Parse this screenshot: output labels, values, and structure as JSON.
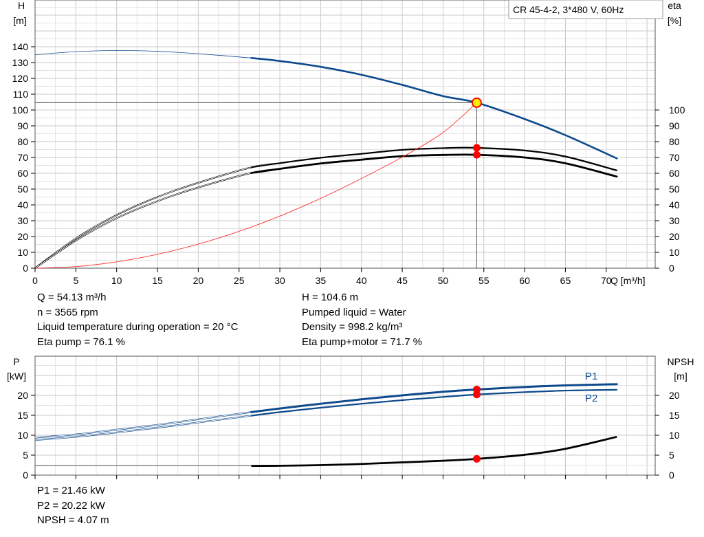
{
  "title_box": "CR 45-4-2, 3*480 V, 60Hz",
  "top_chart": {
    "left_axis_label": [
      "H",
      "[m]"
    ],
    "right_axis_label": [
      "eta",
      "[%]"
    ],
    "x_axis_label": "Q [m³/h]"
  },
  "bottom_chart": {
    "left_axis_label": [
      "P",
      "[kW]"
    ],
    "right_axis_label": [
      "NPSH",
      "[m]"
    ],
    "p1_label": "P1",
    "p2_label": "P2"
  },
  "info_top_left": [
    "Q = 54.13 m³/h",
    "n = 3565 rpm",
    "Liquid temperature during operation = 20 °C",
    "Eta pump = 76.1 %"
  ],
  "info_top_right": [
    "H = 104.6 m",
    "Pumped liquid = Water",
    "Density = 998.2 kg/m³",
    "Eta pump+motor = 71.7 %"
  ],
  "info_bottom": [
    "P1 = 21.46 kW",
    "P2 = 20.22 kW",
    "NPSH = 4.07 m"
  ],
  "colors": {
    "head_curve": "#0d4a8c",
    "eta_curves": "#000000",
    "system_curve": "#ff3030",
    "operating_point": "#ff0000",
    "duty_marker": "#ffee00",
    "grid": "#c8c8c8"
  },
  "chart_data": [
    {
      "type": "line",
      "title": "CR 45-4-2, 3*480 V, 60Hz",
      "xlabel": "Q [m³/h]",
      "ylabel": "H [m]",
      "y2label": "eta [%]",
      "xlim": [
        0,
        76
      ],
      "ylim": [
        0,
        150
      ],
      "y2lim": [
        0,
        100
      ],
      "x_ticks": [
        0,
        5,
        10,
        15,
        20,
        25,
        30,
        35,
        40,
        45,
        50,
        55,
        60,
        65,
        70
      ],
      "y_ticks": [
        0,
        10,
        20,
        30,
        40,
        50,
        60,
        70,
        80,
        90,
        100,
        110,
        120,
        130,
        140
      ],
      "y2_ticks": [
        0,
        10,
        20,
        30,
        40,
        50,
        60,
        70,
        80,
        90,
        100
      ],
      "grid": true,
      "series": [
        {
          "id": "head",
          "axis": "left",
          "x": [
            0,
            5,
            10,
            15,
            20,
            26.5,
            30,
            35,
            40,
            45,
            50,
            54.13,
            60,
            65,
            71.3
          ],
          "y": [
            135,
            136.9,
            137.6,
            137.1,
            135.6,
            132.9,
            131.0,
            127.3,
            122.3,
            115.9,
            108.8,
            104.6,
            94.3,
            84.1,
            69.4
          ],
          "style": "head",
          "thick_from": 26.5
        },
        {
          "id": "eta_pump",
          "axis": "right",
          "x": [
            0,
            5,
            10,
            15,
            20,
            26.5,
            30,
            35,
            40,
            45,
            50,
            54.13,
            60,
            65,
            71.3
          ],
          "y": [
            0,
            18.8,
            33.6,
            45.0,
            54.0,
            63.7,
            66.4,
            69.8,
            72.3,
            74.8,
            75.9,
            76.1,
            74.4,
            70.6,
            61.8
          ],
          "style": "eta",
          "thick_from": 26.5
        },
        {
          "id": "eta_pump_motor",
          "axis": "right",
          "x": [
            0,
            5,
            10,
            15,
            20,
            26.5,
            30,
            35,
            40,
            45,
            50,
            54.13,
            60,
            65,
            71.3
          ],
          "y": [
            0,
            17.5,
            31.6,
            42.4,
            51.0,
            60.2,
            62.8,
            66.2,
            68.6,
            70.8,
            71.6,
            71.7,
            70.0,
            66.3,
            57.9
          ],
          "style": "eta",
          "thick_from": 26.5
        },
        {
          "id": "system_curve",
          "axis": "left",
          "x": [
            0,
            5,
            10,
            15,
            20,
            25,
            30,
            35,
            40,
            45,
            50,
            54.13
          ],
          "y": [
            0,
            1.0,
            4.0,
            8.8,
            15.2,
            23.3,
            32.9,
            44.1,
            56.7,
            70.2,
            85.8,
            104.6
          ],
          "style": "system"
        }
      ],
      "reference_lines": {
        "h_at_duty": 104.6,
        "q_at_duty": 54.13
      },
      "points": [
        {
          "id": "duty_point",
          "x": 54.13,
          "y": 104.6,
          "axis": "left",
          "style": "duty"
        },
        {
          "id": "eta_pump_point",
          "x": 54.13,
          "y": 76.1,
          "axis": "right",
          "style": "op"
        },
        {
          "id": "eta_total_point",
          "x": 54.13,
          "y": 71.7,
          "axis": "right",
          "style": "op"
        }
      ]
    },
    {
      "type": "line",
      "xlabel": "",
      "ylabel": "P [kW]",
      "y2label": "NPSH [m]",
      "xlim": [
        0,
        76
      ],
      "ylim": [
        0,
        25
      ],
      "y2lim": [
        0,
        25
      ],
      "y_ticks": [
        0,
        5,
        10,
        15,
        20
      ],
      "y2_ticks": [
        0,
        5,
        10,
        15,
        20
      ],
      "grid": true,
      "series": [
        {
          "id": "P1",
          "name": "P1",
          "axis": "left",
          "x": [
            0,
            5,
            10,
            15,
            20,
            26.5,
            30,
            35,
            40,
            45,
            50,
            54.13,
            60,
            65,
            71.3
          ],
          "y": [
            9.4,
            10.2,
            11.4,
            12.6,
            14.0,
            15.8,
            16.7,
            17.9,
            19.0,
            20.0,
            20.9,
            21.46,
            22.1,
            22.5,
            22.8
          ],
          "style": "power",
          "thick_from": 26.5
        },
        {
          "id": "P2",
          "name": "P2",
          "axis": "left",
          "x": [
            0,
            5,
            10,
            15,
            20,
            26.5,
            30,
            35,
            40,
            45,
            50,
            54.13,
            60,
            65,
            71.3
          ],
          "y": [
            8.8,
            9.6,
            10.7,
            11.9,
            13.2,
            14.9,
            15.8,
            16.9,
            17.9,
            18.8,
            19.6,
            20.22,
            20.8,
            21.2,
            21.4
          ],
          "style": "power",
          "thick_from": 26.5
        },
        {
          "id": "NPSH",
          "axis": "right",
          "x": [
            26.5,
            30,
            35,
            40,
            45,
            50,
            54.13,
            60,
            65,
            71.3
          ],
          "y": [
            2.3,
            2.35,
            2.5,
            2.8,
            3.2,
            3.6,
            4.07,
            5.1,
            6.6,
            9.6
          ],
          "style": "npsh"
        },
        {
          "id": "NPSH_ref",
          "axis": "right",
          "x": [
            0,
            26.5
          ],
          "y": [
            2.3,
            2.3
          ],
          "style": "thin"
        }
      ],
      "points": [
        {
          "id": "p1_point",
          "x": 54.13,
          "y": 21.46,
          "axis": "left",
          "style": "op"
        },
        {
          "id": "p2_point",
          "x": 54.13,
          "y": 20.22,
          "axis": "left",
          "style": "op"
        },
        {
          "id": "npsh_point",
          "x": 54.13,
          "y": 4.07,
          "axis": "right",
          "style": "op"
        }
      ]
    }
  ]
}
